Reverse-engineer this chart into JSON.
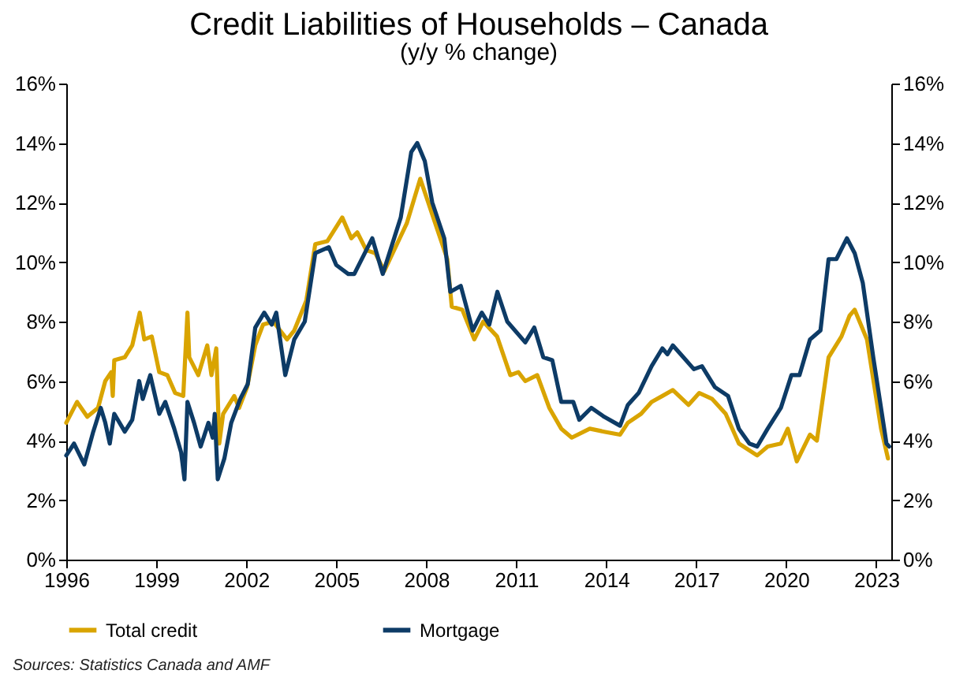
{
  "chart_data": {
    "type": "line",
    "title": "Credit Liabilities of Households – Canada",
    "subtitle": "(y/y % change)",
    "xlim": [
      1996,
      2023.5
    ],
    "xticks": [
      1996,
      1999,
      2002,
      2005,
      2008,
      2011,
      2014,
      2017,
      2020,
      2023
    ],
    "ylim": [
      0,
      16
    ],
    "yticks": [
      {
        "value": 0,
        "label": "0%"
      },
      {
        "value": 2,
        "label": "2%"
      },
      {
        "value": 4,
        "label": "4%"
      },
      {
        "value": 6,
        "label": "6%"
      },
      {
        "value": 8,
        "label": "8%"
      },
      {
        "value": 10,
        "label": "10%"
      },
      {
        "value": 12,
        "label": "12%"
      },
      {
        "value": 14,
        "label": "14%"
      },
      {
        "value": 16,
        "label": "16%"
      }
    ],
    "y2lim": [
      0,
      16
    ],
    "y2ticks": [
      {
        "value": 0,
        "label": "0%"
      },
      {
        "value": 2,
        "label": "2%"
      },
      {
        "value": 4,
        "label": "4%"
      },
      {
        "value": 6,
        "label": "6%"
      },
      {
        "value": 8,
        "label": "8%"
      },
      {
        "value": 10,
        "label": "10%"
      },
      {
        "value": 12,
        "label": "12%"
      },
      {
        "value": 14,
        "label": "14%"
      },
      {
        "value": 16,
        "label": "16%"
      }
    ],
    "grid": false,
    "legend": "bottom",
    "marker": "none",
    "line_style": "solid",
    "annotations": [
      "Sources: Statistics Canada and AMF"
    ],
    "series": [
      {
        "name": "Total credit",
        "color": "#d9a400",
        "x": [
          1996.0,
          1996.36,
          1996.7,
          1997.06,
          1997.3,
          1997.5,
          1997.55,
          1997.6,
          1997.95,
          1998.2,
          1998.45,
          1998.6,
          1998.85,
          1999.1,
          1999.37,
          1999.63,
          1999.9,
          2000.04,
          2000.1,
          2000.4,
          2000.7,
          2000.84,
          2001.0,
          2001.1,
          2001.23,
          2001.6,
          2001.76,
          2002.03,
          2002.3,
          2002.56,
          2002.9,
          2003.36,
          2003.6,
          2004.0,
          2004.3,
          2004.7,
          2005.2,
          2005.5,
          2005.7,
          2006.0,
          2006.3,
          2006.6,
          2007.35,
          2007.8,
          2008.2,
          2008.7,
          2008.85,
          2009.2,
          2009.6,
          2009.9,
          2010.36,
          2010.8,
          2011.07,
          2011.3,
          2011.7,
          2012.1,
          2012.5,
          2012.85,
          2013.45,
          2013.93,
          2014.46,
          2014.72,
          2015.16,
          2015.51,
          2015.87,
          2016.22,
          2016.74,
          2017.1,
          2017.53,
          2017.98,
          2018.42,
          2019.03,
          2019.38,
          2019.82,
          2020.05,
          2020.35,
          2020.79,
          2021.02,
          2021.41,
          2021.84,
          2022.11,
          2022.28,
          2022.69,
          2023.16,
          2023.39
        ],
        "values": [
          4.6,
          5.3,
          4.8,
          5.1,
          6.0,
          6.3,
          5.5,
          6.7,
          6.8,
          7.2,
          8.3,
          7.4,
          7.5,
          6.3,
          6.2,
          5.6,
          5.5,
          8.3,
          6.8,
          6.2,
          7.2,
          6.2,
          7.1,
          3.9,
          4.9,
          5.5,
          5.1,
          5.8,
          7.2,
          7.9,
          8.0,
          7.4,
          7.7,
          8.7,
          10.6,
          10.7,
          11.5,
          10.8,
          11.0,
          10.4,
          10.3,
          9.7,
          11.3,
          12.8,
          11.6,
          10.1,
          8.5,
          8.4,
          7.4,
          8.0,
          7.5,
          6.2,
          6.3,
          6.0,
          6.2,
          5.1,
          4.4,
          4.1,
          4.4,
          4.3,
          4.2,
          4.6,
          4.9,
          5.3,
          5.5,
          5.7,
          5.2,
          5.6,
          5.4,
          4.9,
          3.9,
          3.5,
          3.8,
          3.9,
          4.4,
          3.3,
          4.2,
          4.0,
          6.8,
          7.5,
          8.2,
          8.4,
          7.4,
          4.4,
          3.4
        ]
      },
      {
        "name": "Mortgage",
        "color": "#0d3b66",
        "x": [
          1996.0,
          1996.26,
          1996.6,
          1996.9,
          1997.15,
          1997.3,
          1997.45,
          1997.6,
          1997.95,
          1998.2,
          1998.43,
          1998.55,
          1998.8,
          1999.1,
          1999.3,
          1999.6,
          1999.83,
          1999.94,
          2000.04,
          2000.26,
          2000.48,
          2000.74,
          2000.88,
          2000.95,
          2001.05,
          2001.27,
          2001.5,
          2001.8,
          2002.05,
          2002.3,
          2002.6,
          2002.85,
          2003.0,
          2003.3,
          2003.6,
          2003.95,
          2004.3,
          2004.75,
          2005.0,
          2005.4,
          2005.6,
          2006.2,
          2006.55,
          2007.15,
          2007.5,
          2007.7,
          2007.95,
          2008.2,
          2008.6,
          2008.8,
          2009.15,
          2009.55,
          2009.85,
          2010.1,
          2010.37,
          2010.7,
          2011.3,
          2011.6,
          2011.9,
          2012.2,
          2012.5,
          2012.9,
          2013.1,
          2013.5,
          2013.93,
          2014.46,
          2014.72,
          2015.08,
          2015.51,
          2015.87,
          2016.04,
          2016.22,
          2016.57,
          2016.92,
          2017.19,
          2017.62,
          2018.06,
          2018.42,
          2018.77,
          2019.03,
          2019.38,
          2019.82,
          2020.17,
          2020.44,
          2020.79,
          2021.14,
          2021.41,
          2021.67,
          2022.02,
          2022.28,
          2022.55,
          2022.9,
          2023.34,
          2023.43
        ],
        "values": [
          3.5,
          3.9,
          3.2,
          4.3,
          5.1,
          4.6,
          3.9,
          4.9,
          4.3,
          4.7,
          6.0,
          5.4,
          6.2,
          4.9,
          5.3,
          4.4,
          3.6,
          2.7,
          5.3,
          4.6,
          3.8,
          4.6,
          4.1,
          4.9,
          2.7,
          3.4,
          4.6,
          5.4,
          5.9,
          7.8,
          8.3,
          7.9,
          8.3,
          6.2,
          7.4,
          8.0,
          10.3,
          10.5,
          9.9,
          9.6,
          9.6,
          10.8,
          9.6,
          11.5,
          13.7,
          14.0,
          13.4,
          12.0,
          10.8,
          9.0,
          9.2,
          7.7,
          8.3,
          7.9,
          9.0,
          8.0,
          7.3,
          7.8,
          6.8,
          6.7,
          5.3,
          5.3,
          4.7,
          5.1,
          4.8,
          4.5,
          5.2,
          5.6,
          6.5,
          7.1,
          6.9,
          7.2,
          6.8,
          6.4,
          6.5,
          5.8,
          5.5,
          4.4,
          3.9,
          3.8,
          4.4,
          5.1,
          6.2,
          6.2,
          7.4,
          7.7,
          10.1,
          10.1,
          10.8,
          10.3,
          9.3,
          6.8,
          3.9,
          3.8
        ]
      }
    ]
  }
}
